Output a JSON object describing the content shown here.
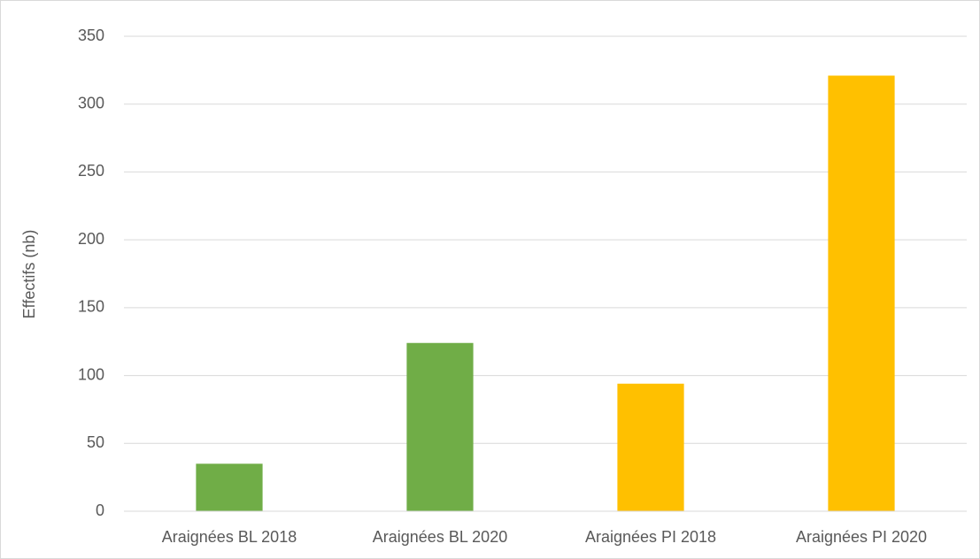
{
  "chart_data": {
    "type": "bar",
    "y_label": "Effectifs (nb)",
    "categories": [
      "Araignées BL 2018",
      "Araignées BL 2020",
      "Araignées PI 2018",
      "Araignées PI 2020"
    ],
    "values": [
      35,
      124,
      94,
      321
    ],
    "colors": [
      "#70ad47",
      "#70ad47",
      "#ffc000",
      "#ffc000"
    ],
    "ylim": [
      0,
      350
    ],
    "yticks": [
      0,
      50,
      100,
      150,
      200,
      250,
      300,
      350
    ],
    "grid": true
  }
}
